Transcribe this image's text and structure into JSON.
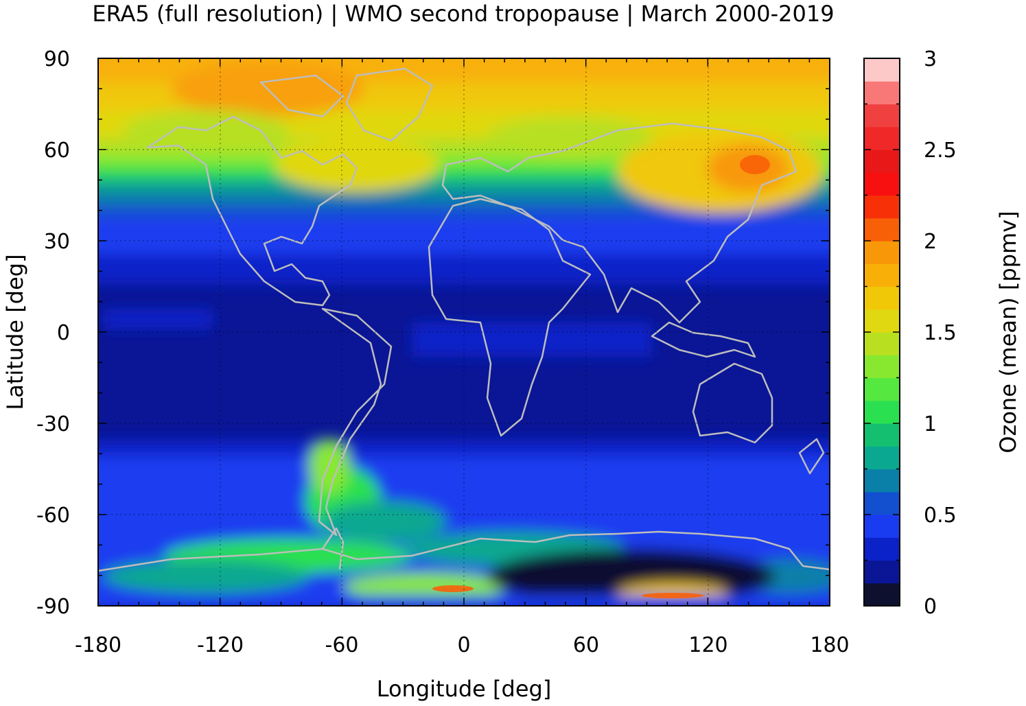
{
  "title": "ERA5 (full resolution) | WMO second tropopause | March 2000-2019",
  "chart_data": {
    "type": "heatmap",
    "title": "ERA5 (full resolution) | WMO second tropopause | March 2000-2019",
    "xlabel": "Longitude [deg]",
    "ylabel": "Latitude [deg]",
    "colorbar_label": "Ozone (mean) [ppmv]",
    "xlim": [
      -180,
      180
    ],
    "ylim": [
      -90,
      90
    ],
    "x_ticks": [
      "-180",
      "-120",
      "-60",
      "0",
      "60",
      "120",
      "180"
    ],
    "y_ticks": [
      "90",
      "60",
      "30",
      "0",
      "-30",
      "-60",
      "-90"
    ],
    "colorbar_ticks": [
      "3",
      "2.5",
      "2",
      "1.5",
      "1",
      "0.5",
      "0"
    ],
    "colorbar_range": [
      0,
      3
    ],
    "grid": true,
    "coastlines": true,
    "colorbar_colors": [
      "#0e1030",
      "#0a1696",
      "#0b22c8",
      "#1a3cf0",
      "#1250d0",
      "#0a80a8",
      "#0aa890",
      "#14c070",
      "#2ae050",
      "#55e840",
      "#88e830",
      "#b8e020",
      "#e0d810",
      "#f0c808",
      "#f8b008",
      "#f89808",
      "#f86008",
      "#f83008",
      "#f81010",
      "#e81818",
      "#f02828",
      "#f04040",
      "#f87878",
      "#fcc8c8"
    ],
    "field_summary": [
      {
        "lat_range": [
          75,
          90
        ],
        "ozone_ppmv": 1.8
      },
      {
        "lat_range": [
          60,
          75
        ],
        "ozone_ppmv": 1.5
      },
      {
        "lat_range": [
          45,
          60
        ],
        "ozone_ppmv": 1.0
      },
      {
        "lat_range": [
          30,
          45
        ],
        "ozone_ppmv": 0.5
      },
      {
        "lat_range": [
          15,
          30
        ],
        "ozone_ppmv": 0.35
      },
      {
        "lat_range": [
          -40,
          15
        ],
        "ozone_ppmv": 0.15
      },
      {
        "lat_range": [
          -65,
          -40
        ],
        "ozone_ppmv": 0.35
      },
      {
        "lat_range": [
          -90,
          -65
        ],
        "ozone_ppmv": 0.4
      }
    ],
    "features": [
      {
        "lon": 140,
        "lat": 55,
        "ozone_ppmv": 2.3
      },
      {
        "lon": 95,
        "lat": -82,
        "ozone_ppmv": 0.05
      }
    ]
  }
}
